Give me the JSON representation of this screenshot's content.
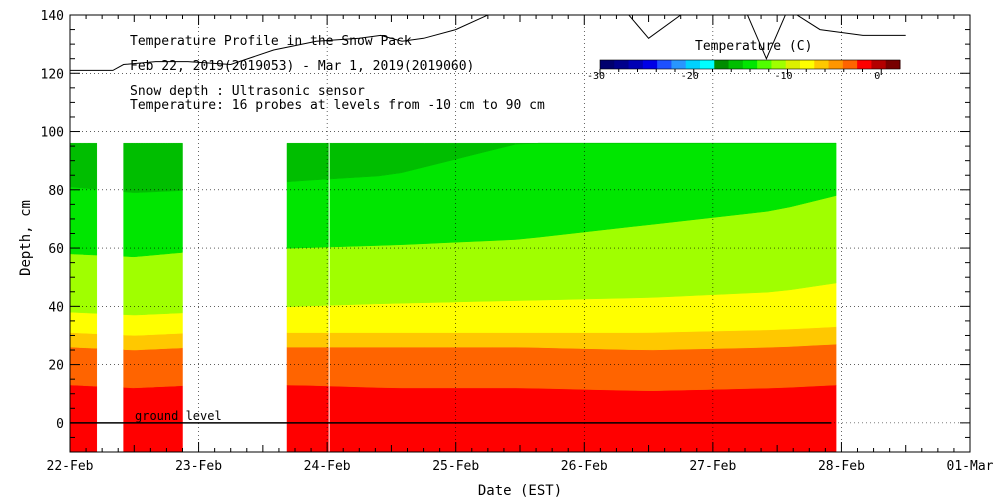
{
  "chart_data": {
    "type": "heatmap",
    "title": "Temperature Profile in the Snow Pack",
    "subtitle": "Feb 22, 2019(2019053) - Mar  1, 2019(2019060)",
    "notes": [
      "Snow depth : Ultrasonic sensor",
      "Temperature: 16 probes at levels from -10 cm to 90 cm"
    ],
    "xlabel": "Date (EST)",
    "ylabel": "Depth, cm",
    "x_ticks": [
      "22-Feb",
      "23-Feb",
      "24-Feb",
      "25-Feb",
      "26-Feb",
      "27-Feb",
      "28-Feb",
      "01-Mar"
    ],
    "xlim": [
      "2019-02-22",
      "2019-03-01"
    ],
    "y_ticks": [
      0,
      20,
      40,
      60,
      80,
      100,
      120,
      140
    ],
    "ylim": [
      -10,
      140
    ],
    "grid": true,
    "annotation": "ground level",
    "ground_level_cm": 0,
    "probe_top_cm": 96,
    "colorbar": {
      "label": "Temperature (C)",
      "range": [
        -30,
        2
      ],
      "tick_labels": [
        "-30",
        "-20",
        "-10",
        "0"
      ],
      "colors": [
        "#00006e",
        "#00008c",
        "#0000b4",
        "#0000e6",
        "#1e50ff",
        "#2896ff",
        "#00d2ff",
        "#00ffff",
        "#008c00",
        "#00be00",
        "#00e600",
        "#50ff00",
        "#a0ff00",
        "#dcf000",
        "#ffff00",
        "#ffc800",
        "#ff9600",
        "#ff6400",
        "#ff0000",
        "#b40000",
        "#780000"
      ]
    },
    "data_periods": [
      {
        "start": "2019-02-22T00:00",
        "end": "2019-02-22T05:00"
      },
      {
        "start": "2019-02-22T10:00",
        "end": "2019-02-22T21:00"
      },
      {
        "start": "2019-02-23T16:30",
        "end": "2019-02-27T23:00"
      }
    ],
    "isotherm_levels_cm": {
      "dates": [
        "2019-02-22T00:00",
        "2019-02-22T12:00",
        "2019-02-23T00:00",
        "2019-02-23T18:00",
        "2019-02-24T12:00",
        "2019-02-25T12:00",
        "2019-02-26T12:00",
        "2019-02-27T12:00",
        "2019-02-27T23:00"
      ],
      "bands": [
        {
          "temp_range": "above 0 C",
          "color": "#ff0000",
          "top": [
            13,
            12,
            13,
            13,
            12,
            12,
            11,
            12,
            13
          ]
        },
        {
          "temp_range": "-1 to 0 C",
          "color": "#ff6400",
          "top": [
            26,
            25,
            26,
            26,
            26,
            26,
            25,
            26,
            27
          ]
        },
        {
          "temp_range": "-2 to -1 C",
          "color": "#ffc800",
          "top": [
            31,
            30,
            31,
            31,
            31,
            31,
            31,
            32,
            33
          ]
        },
        {
          "temp_range": "-3 to -2 C",
          "color": "#ffff00",
          "top": [
            38,
            37,
            38,
            40,
            41,
            42,
            43,
            45,
            48
          ]
        },
        {
          "temp_range": "-5 to -3 C",
          "color": "#a0ff00",
          "top": [
            58,
            57,
            59,
            60,
            61,
            63,
            68,
            73,
            78
          ]
        },
        {
          "temp_range": "-7 to -5 C",
          "color": "#00e600",
          "top": [
            81,
            79,
            80,
            83,
            85,
            96,
            96,
            96,
            96
          ]
        },
        {
          "temp_range": "-9 to -7 C",
          "color": "#00be00",
          "top": [
            96,
            96,
            96,
            96,
            96,
            96,
            96,
            96,
            96
          ]
        }
      ]
    },
    "snow_depth_series": {
      "description_color": "#000000",
      "dates": [
        "2019-02-22T00:00",
        "2019-02-22T08:00",
        "2019-02-22T10:00",
        "2019-02-22T16:00",
        "2019-02-22T22:00",
        "2019-02-23T06:00",
        "2019-02-23T14:00",
        "2019-02-23T22:00",
        "2019-02-24T06:00",
        "2019-02-24T10:00",
        "2019-02-24T14:00",
        "2019-02-24T18:00",
        "2019-02-25T00:00",
        "2019-02-25T06:00",
        "2019-02-25T10:00",
        "2019-02-25T14:00",
        "2019-02-25T18:00",
        "2019-02-26T00:00",
        "2019-02-26T06:00",
        "2019-02-26T12:00",
        "2019-02-26T18:00",
        "2019-02-27T00:00",
        "2019-02-27T06:00",
        "2019-02-27T10:00",
        "2019-02-27T14:00",
        "2019-02-27T20:00",
        "2019-02-28T04:00",
        "2019-02-28T12:00"
      ],
      "values": [
        121,
        121,
        123,
        124,
        124,
        123,
        128,
        131,
        132,
        133,
        131,
        132,
        135,
        140,
        148,
        150,
        152,
        149,
        145,
        132,
        140,
        149,
        142,
        125,
        142,
        135,
        133,
        133
      ]
    }
  }
}
